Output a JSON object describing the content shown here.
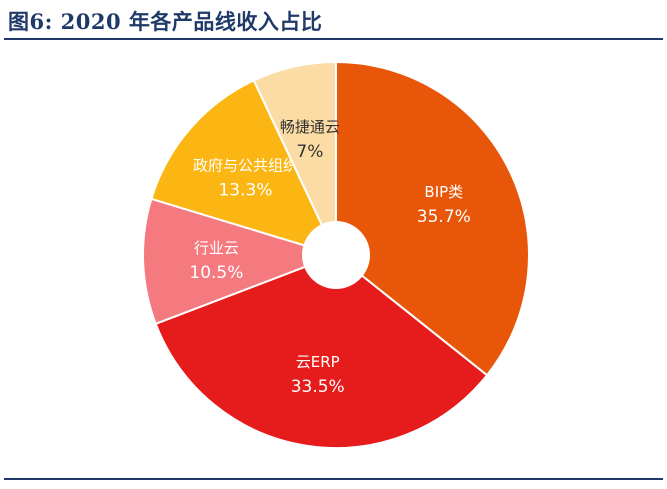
{
  "figure": {
    "title": "图6:   2020 年各产品线收入占比"
  },
  "colors": {
    "title": "#1f3a68",
    "label_light": "#ffffff",
    "label_dark": "#333333"
  },
  "chart_data": {
    "type": "pie",
    "donut": true,
    "title": "",
    "legend": "none",
    "start_angle_deg": 0,
    "direction": "clockwise",
    "slices": [
      {
        "label": "BIP类",
        "value": 35.7,
        "value_label": "35.7%",
        "color": "#e8560a",
        "text": "light"
      },
      {
        "label": "云ERP",
        "value": 33.5,
        "value_label": "33.5%",
        "color": "#e61c1c",
        "text": "light"
      },
      {
        "label": "行业云",
        "value": 10.5,
        "value_label": "10.5%",
        "color": "#f57a7f",
        "text": "light"
      },
      {
        "label": "政府与公共组织",
        "value": 13.3,
        "value_label": "13.3%",
        "color": "#fbb613",
        "text": "light"
      },
      {
        "label": "畅捷通云",
        "value": 7,
        "value_label": "7%",
        "color": "#fbdca5",
        "text": "dark"
      }
    ]
  }
}
